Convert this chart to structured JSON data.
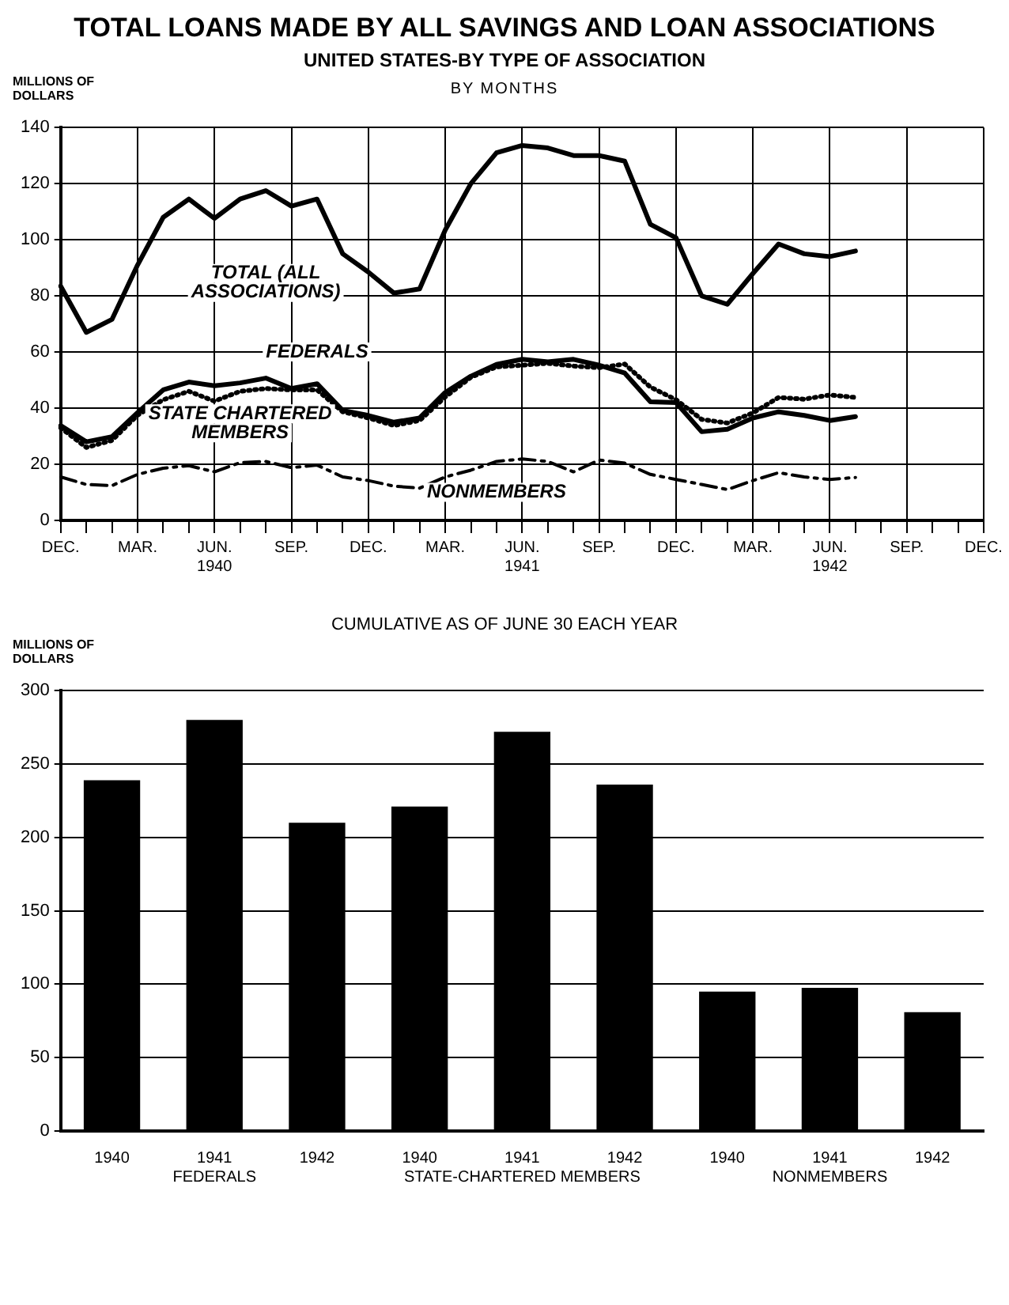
{
  "chart_data": [
    {
      "type": "line",
      "title": "TOTAL LOANS MADE BY ALL SAVINGS AND LOAN ASSOCIATIONS",
      "subtitle": "UNITED STATES-BY TYPE OF ASSOCIATION",
      "ylabel": "MILLIONS OF DOLLARS",
      "annotations": [
        "BY MONTHS"
      ],
      "categories": [
        "DEC.",
        null,
        null,
        "MAR.",
        null,
        null,
        "JUN.\n1940",
        null,
        null,
        "SEP.",
        null,
        null,
        "DEC.",
        null,
        null,
        "MAR.",
        null,
        null,
        "JUN.\n1941",
        null,
        null,
        "SEP.",
        null,
        null,
        "DEC.",
        null,
        null,
        "MAR.",
        null,
        null,
        "JUN.\n1942",
        null,
        null,
        "SEP.",
        null,
        null,
        "DEC."
      ],
      "ylim": [
        0,
        140
      ],
      "yticks": [
        0,
        20,
        40,
        60,
        80,
        100,
        120,
        140
      ],
      "grid": true,
      "legend": false,
      "marker": "none",
      "series": [
        {
          "name": "TOTAL (ALL ASSOCIATIONS)",
          "color": "#000000",
          "line_style": "solid",
          "values": [
            83.5,
            67,
            71.6,
            91,
            108,
            114.5,
            107.6,
            114.5,
            117.5,
            112,
            114.5,
            95,
            88.5,
            81,
            82.5,
            103.5,
            120,
            131,
            133.6,
            132.7,
            130,
            130,
            128,
            105.5,
            100.7,
            80,
            77,
            88,
            98.5,
            95,
            94,
            96,
            null,
            null,
            null,
            null,
            null
          ]
        },
        {
          "name": "FEDERALS",
          "color": "#000000",
          "line_style": "solid",
          "values": [
            33.8,
            28,
            29.8,
            38.4,
            46.5,
            49.3,
            48,
            49,
            50.7,
            47,
            48.7,
            39.2,
            37.4,
            35,
            36.5,
            45.6,
            51.4,
            55.6,
            57.4,
            56.5,
            57.4,
            55.3,
            52.5,
            42.3,
            42,
            31.6,
            32.5,
            36.5,
            38.7,
            37.4,
            35.6,
            37,
            null,
            null,
            null,
            null,
            null
          ]
        },
        {
          "name": "STATE CHARTERED MEMBERS",
          "color": "#000000",
          "line_style": "dotted",
          "values": [
            33,
            26,
            28.5,
            37.5,
            43,
            46,
            42.5,
            46,
            47,
            46.5,
            46.5,
            38.7,
            36.5,
            33.8,
            35.6,
            44,
            51,
            54.7,
            55.3,
            56,
            55,
            54.4,
            55.7,
            47.5,
            43,
            36,
            34.7,
            38.3,
            43.8,
            43.2,
            44.7,
            43.8,
            null,
            null,
            null,
            null,
            null
          ]
        },
        {
          "name": "NONMEMBERS",
          "color": "#000000",
          "line_style": "dashed",
          "values": [
            15.5,
            12.8,
            12.4,
            16.4,
            18.6,
            19.5,
            17.3,
            20.6,
            21,
            18.8,
            19.7,
            15.5,
            14.2,
            12.2,
            11.5,
            15.5,
            17.9,
            21,
            21.9,
            21,
            17.3,
            21.5,
            20.4,
            16.4,
            14.6,
            12.8,
            11,
            14.2,
            17,
            15.5,
            14.6,
            15.3,
            null,
            null,
            null,
            null,
            null
          ]
        }
      ]
    },
    {
      "type": "bar",
      "title": "CUMULATIVE AS OF JUNE 30 EACH YEAR",
      "ylabel": "MILLIONS OF DOLLARS",
      "categories": [
        "1940",
        "1941\nFEDERALS",
        "1942",
        "1940",
        "1941\nSTATE-CHARTERED MEMBERS",
        "1942",
        "1940",
        "1941\nNONMEMBERS",
        "1942"
      ],
      "values": [
        239,
        280,
        210,
        221,
        272,
        236,
        95,
        97.5,
        81
      ],
      "color": "#000000",
      "ylim": [
        0,
        300
      ],
      "yticks": [
        0,
        50,
        100,
        150,
        200,
        250,
        300
      ],
      "grid": "y",
      "legend": false
    }
  ]
}
